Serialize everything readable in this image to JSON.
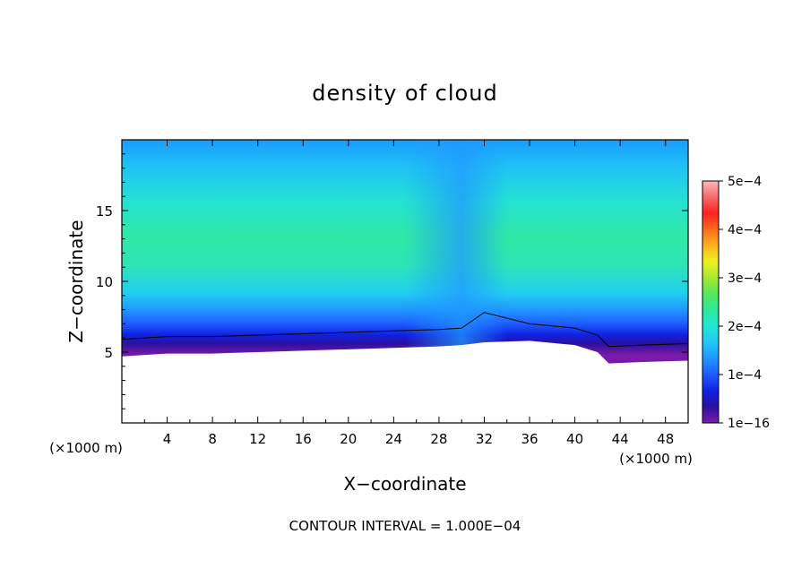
{
  "chart_data": {
    "type": "heatmap",
    "title": "density of cloud",
    "xlabel": "X−coordinate",
    "ylabel": "Z−coordinate",
    "x_unit_left": "(×1000 m)",
    "x_unit_right": "(×1000 m)",
    "xlim": [
      0,
      50
    ],
    "ylim": [
      0,
      20
    ],
    "x_ticks": [
      4,
      8,
      12,
      16,
      20,
      24,
      28,
      32,
      36,
      40,
      44,
      48
    ],
    "y_ticks": [
      5,
      10,
      15
    ],
    "colorbar": {
      "min": 1e-16,
      "max": 0.0005,
      "tick_labels": [
        "5e−4",
        "4e−4",
        "3e−4",
        "2e−4",
        "1e−4",
        "1e−16"
      ],
      "tick_values": [
        0.0005,
        0.0004,
        0.0003,
        0.0002,
        0.0001,
        1e-16
      ],
      "colors": [
        "#7a1aa8",
        "#2a10a0",
        "#1020e0",
        "#1e5cff",
        "#1f96ff",
        "#22c8f5",
        "#22e6d4",
        "#2ee89a",
        "#55e85e",
        "#a8e832",
        "#f0f020",
        "#ffb21e",
        "#ff6a1e",
        "#ff2020",
        "#f86a6a",
        "#ffb8b8"
      ]
    },
    "contour_interval_text": "CONTOUR INTERVAL = 1.000E−04",
    "cloud_base_z": [
      4.7,
      4.9,
      4.9,
      5.0,
      5.1,
      5.2,
      5.3,
      5.4,
      5.5,
      5.7,
      5.8,
      5.5,
      5.0,
      4.2,
      4.3,
      4.4
    ],
    "cloud_base_x": [
      0,
      4,
      8,
      12,
      16,
      20,
      24,
      28,
      30,
      32,
      36,
      40,
      42,
      43,
      46,
      50
    ]
  }
}
